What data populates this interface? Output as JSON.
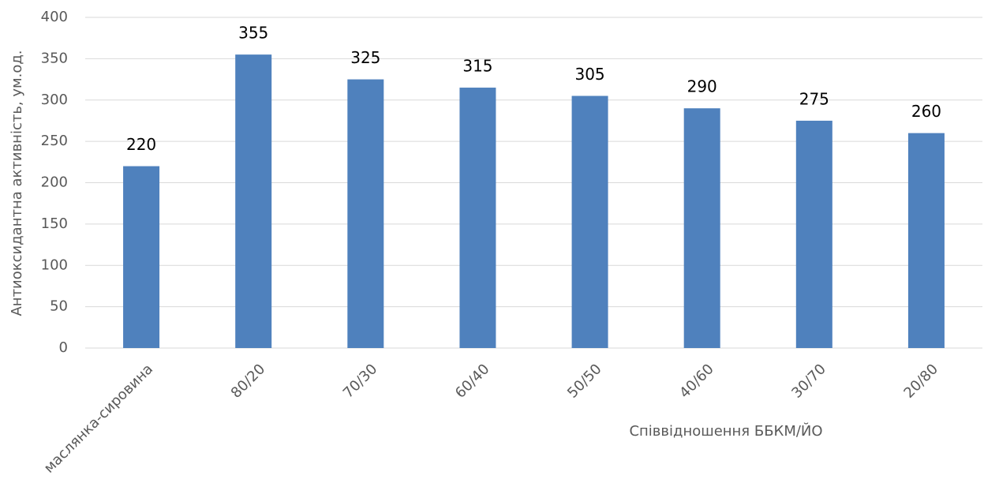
{
  "chart_data": {
    "type": "bar",
    "categories": [
      "маслянка-сировина",
      "80/20",
      "70/30",
      "60/40",
      "50/50",
      "40/60",
      "30/70",
      "20/80"
    ],
    "values": [
      220,
      355,
      325,
      315,
      305,
      290,
      275,
      260
    ],
    "color": "#4f81bd",
    "x_label": "Співвідношення ББКМ/ЙО",
    "y_label": "Антиоксидантна активність, ум.од.",
    "ylim": [
      0,
      400
    ],
    "yticks": [
      0,
      50,
      100,
      150,
      200,
      250,
      300,
      350,
      400
    ],
    "grid": true,
    "data_labels": true
  }
}
